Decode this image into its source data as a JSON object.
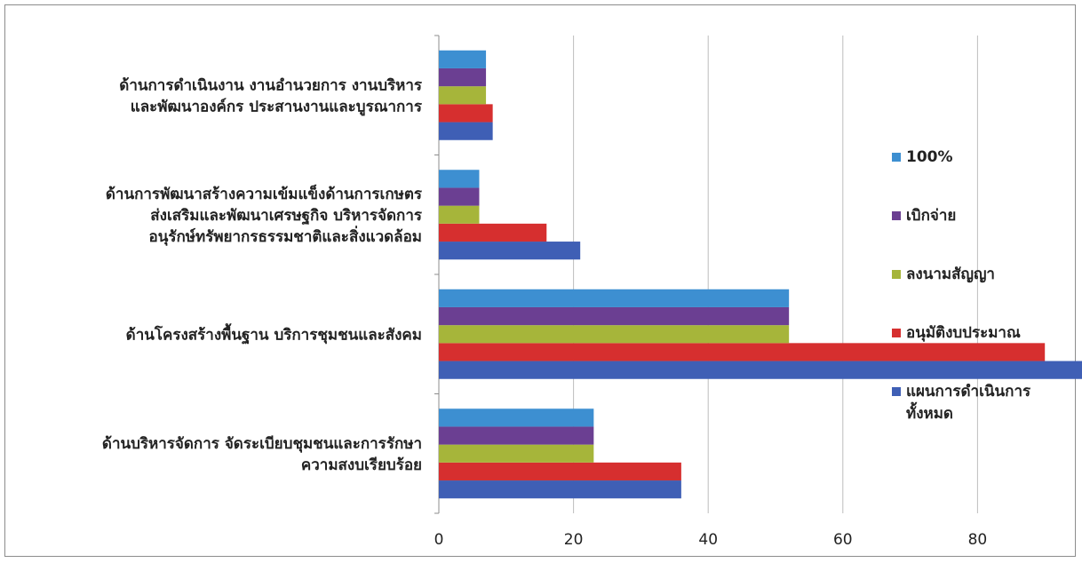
{
  "chart_data": {
    "type": "bar",
    "orientation": "horizontal",
    "categories": [
      [
        "ด้านบริหารจัดการ จัดระเบียบชุมชนและการรักษา",
        "ความสงบเรียบร้อย"
      ],
      [
        "ด้านโครงสร้างพื้นฐาน บริการชุมชนและสังคม"
      ],
      [
        "ด้านการพัฒนาสร้างความเข้มแข็งด้านการเกษตร",
        "ส่งเสริมและพัฒนาเศรษฐกิจ บริหารจัดการ",
        "อนุรักษ์ทรัพยากรธรรมชาติและสิ่งแวดล้อม"
      ],
      [
        "ด้านการดำเนินงาน งานอำนวยการ งานบริหาร",
        "และพัฒนาองค์กร ประสานงานและบูรณาการ"
      ]
    ],
    "series": [
      {
        "name": "แผนการดำเนินการทั้งหมด",
        "legend_lines": [
          "แผนการดำเนินการ",
          "ทั้งหมด"
        ],
        "color": "#3f5fb5",
        "values": [
          36,
          105,
          21,
          8
        ]
      },
      {
        "name": "อนุมัติงบประมาณ",
        "legend_lines": [
          "อนุมัติงบประมาณ"
        ],
        "color": "#d62f2f",
        "values": [
          36,
          90,
          16,
          8
        ]
      },
      {
        "name": "ลงนามสัญญา",
        "legend_lines": [
          "ลงนามสัญญา"
        ],
        "color": "#a6b53a",
        "values": [
          23,
          52,
          6,
          7
        ]
      },
      {
        "name": "เบิกจ่าย",
        "legend_lines": [
          "เบิกจ่าย"
        ],
        "color": "#6b3f92",
        "values": [
          23,
          52,
          6,
          7
        ]
      },
      {
        "name": "100%",
        "legend_lines": [
          "100%"
        ],
        "color": "#3d8fd1",
        "values": [
          23,
          52,
          6,
          7
        ]
      }
    ],
    "xlim": [
      0,
      120
    ],
    "xticks": [
      "0",
      "20",
      "40",
      "60",
      "80",
      "100",
      "120"
    ],
    "grid": true,
    "legend_position": "right"
  }
}
